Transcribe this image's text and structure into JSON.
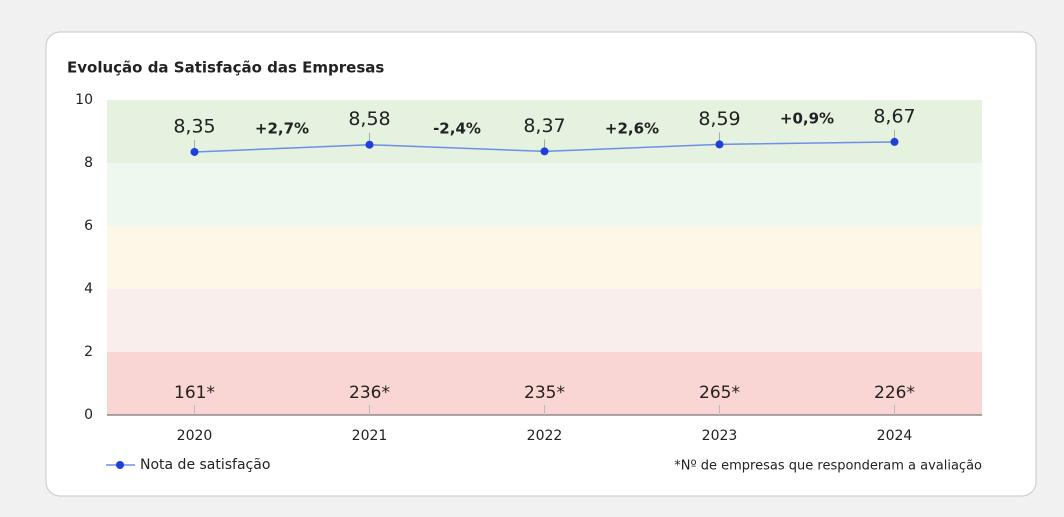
{
  "chart_data": {
    "type": "line",
    "title": "Evolução da Satisfação das Empresas",
    "categories": [
      "2020",
      "2021",
      "2022",
      "2023",
      "2024"
    ],
    "series": [
      {
        "name": "Nota de satisfação",
        "color": "#1f3fd8",
        "values": [
          8.35,
          8.58,
          8.37,
          8.59,
          8.67
        ],
        "value_labels": [
          "8,35",
          "8,58",
          "8,37",
          "8,59",
          "8,67"
        ]
      }
    ],
    "changes": [
      {
        "value": 2.7,
        "label": "+2,7%"
      },
      {
        "value": -2.4,
        "label": "-2,4%"
      },
      {
        "value": 2.6,
        "label": "+2,6%"
      },
      {
        "value": 0.9,
        "label": "+0,9%"
      }
    ],
    "counts": [
      161,
      236,
      235,
      265,
      226
    ],
    "count_labels": [
      "161*",
      "236*",
      "235*",
      "265*",
      "226*"
    ],
    "footnote": "*Nº de empresas que responderam a avaliação",
    "bands": [
      {
        "from": 0,
        "to": 2,
        "color": "#f9d6d4"
      },
      {
        "from": 2,
        "to": 4,
        "color": "#f9eeeb"
      },
      {
        "from": 4,
        "to": 6,
        "color": "#fdf7e8"
      },
      {
        "from": 6,
        "to": 8,
        "color": "#eef8ee"
      },
      {
        "from": 8,
        "to": 10,
        "color": "#e4f2df"
      }
    ],
    "ylim": [
      0,
      10
    ],
    "yticks": [
      0,
      2,
      4,
      6,
      8,
      10
    ]
  }
}
